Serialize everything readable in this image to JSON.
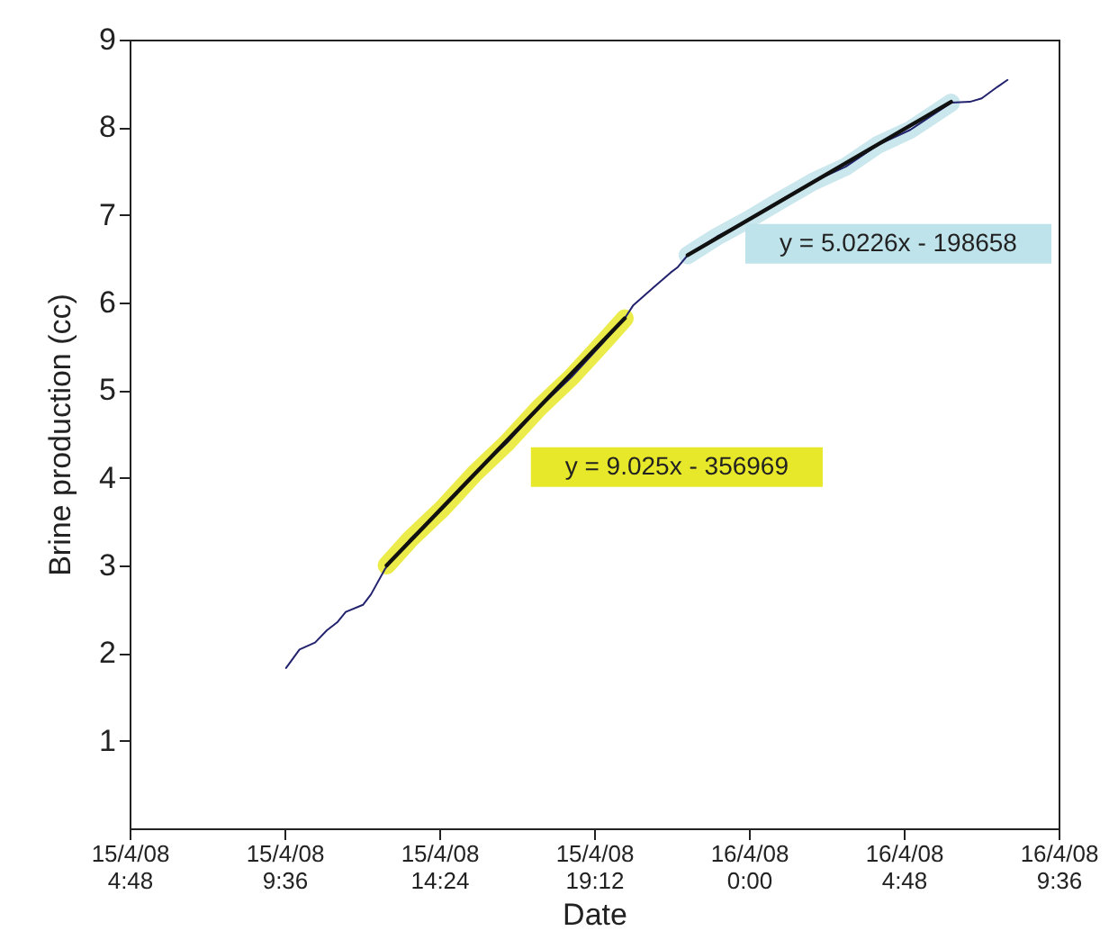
{
  "chart_data": {
    "type": "line",
    "xlabel": "Date",
    "ylabel": "Brine production (cc)",
    "xlim": [
      "--04-15T04:48",
      "--04-16T09:36"
    ],
    "xticks": [
      {
        "value": "--04-15T04:48",
        "label": "15/4/08 4:48"
      },
      {
        "value": "--04-15T09:36",
        "label": "15/4/08 9:36"
      },
      {
        "value": "--04-15T14:24",
        "label": "15/4/08 14:24"
      },
      {
        "value": "--04-15T19:12",
        "label": "15/4/08 19:12"
      },
      {
        "value": "--04-16T00:00",
        "label": "16/4/08 0:00"
      },
      {
        "value": "--04-16T04:48",
        "label": "16/4/08 4:48"
      },
      {
        "value": "--04-16T09:36",
        "label": "16/4/08 9:36"
      }
    ],
    "ylim": [
      0,
      9
    ],
    "yticks": [
      1,
      2,
      3,
      4,
      5,
      6,
      7,
      8,
      9
    ],
    "grid": false,
    "series": [
      {
        "color": "#e8e82a",
        "x": [
          "--04-15T12:46",
          "--04-15T13:30",
          "--04-15T14:30",
          "--04-15T15:30",
          "--04-15T16:30",
          "--04-15T17:30",
          "--04-15T18:30",
          "--04-15T19:30",
          "--04-15T20:09"
        ],
        "values": [
          3.0,
          3.3,
          3.65,
          4.05,
          4.4,
          4.8,
          5.15,
          5.55,
          5.82
        ]
      },
      {
        "color": "#bfe3ea",
        "x": [
          "--04-15T22:06",
          "--04-15T23:00",
          "--04-16T00:00",
          "--04-16T01:00",
          "--04-16T02:00",
          "--04-16T03:00",
          "--04-16T04:00",
          "--04-16T05:00",
          "--04-16T06:16"
        ],
        "values": [
          6.54,
          6.75,
          6.95,
          7.17,
          7.38,
          7.55,
          7.8,
          7.97,
          8.28
        ]
      },
      {
        "color": "#22226e",
        "x": [
          "--04-15T09:39",
          "--04-15T10:04",
          "--04-15T10:33",
          "--04-15T10:55",
          "--04-15T11:14",
          "--04-15T11:30",
          "--04-15T12:02",
          "--04-15T12:17",
          "--04-15T12:43",
          "--04-15T13:30",
          "--04-15T14:30",
          "--04-15T15:30",
          "--04-15T16:30",
          "--04-15T17:30",
          "--04-15T18:30",
          "--04-15T19:30",
          "--04-15T20:09",
          "--04-15T20:25",
          "--04-15T21:02",
          "--04-15T21:34",
          "--04-15T21:47",
          "--04-15T22:06",
          "--04-15T23:00",
          "--04-16T00:00",
          "--04-16T01:00",
          "--04-16T02:00",
          "--04-16T03:00",
          "--04-16T04:00",
          "--04-16T05:00",
          "--04-16T06:16",
          "--04-16T06:51",
          "--04-16T07:13",
          "--04-16T07:42",
          "--04-16T08:01"
        ],
        "values": [
          1.83,
          2.04,
          2.12,
          2.26,
          2.35,
          2.47,
          2.55,
          2.67,
          2.96,
          3.3,
          3.65,
          4.05,
          4.4,
          4.8,
          5.15,
          5.55,
          5.82,
          5.97,
          6.17,
          6.34,
          6.4,
          6.54,
          6.75,
          6.95,
          7.17,
          7.38,
          7.55,
          7.8,
          7.97,
          8.28,
          8.29,
          8.33,
          8.46,
          8.54
        ]
      },
      {
        "color": "#111111",
        "x": [
          "--04-15T12:46",
          "--04-15T20:09"
        ],
        "values": [
          3.0,
          5.82
        ]
      },
      {
        "color": "#111111",
        "x": [
          "--04-15T22:06",
          "--04-16T06:16"
        ],
        "values": [
          6.54,
          8.29
        ]
      }
    ],
    "annotations": [
      "y = 9.025x - 356969",
      "y = 5.0226x - 198658"
    ]
  }
}
